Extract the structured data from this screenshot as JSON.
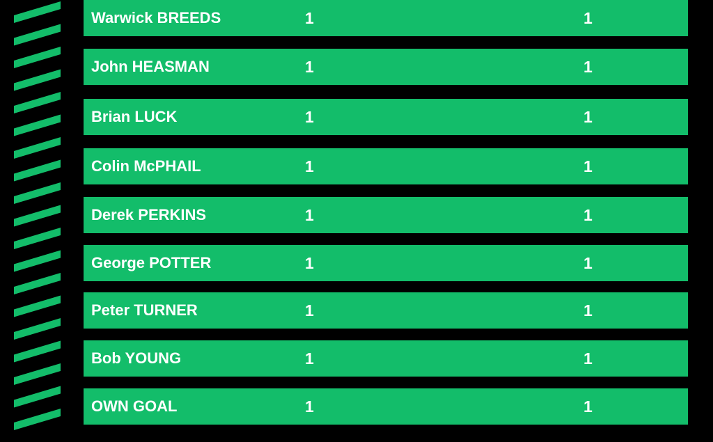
{
  "colors": {
    "accent": "#13bd6a",
    "background": "#000000",
    "text": "#ffffff"
  },
  "rows": [
    {
      "name": "Warwick BREEDS",
      "col1": "1",
      "col2": "1"
    },
    {
      "name": "John HEASMAN",
      "col1": "1",
      "col2": "1"
    },
    {
      "name": "Brian LUCK",
      "col1": "1",
      "col2": "1"
    },
    {
      "name": "Colin McPHAIL",
      "col1": "1",
      "col2": "1"
    },
    {
      "name": "Derek PERKINS",
      "col1": "1",
      "col2": "1"
    },
    {
      "name": "George POTTER",
      "col1": "1",
      "col2": "1"
    },
    {
      "name": "Peter TURNER",
      "col1": "1",
      "col2": "1"
    },
    {
      "name": "Bob YOUNG",
      "col1": "1",
      "col2": "1"
    },
    {
      "name": "OWN GOAL",
      "col1": "1",
      "col2": "1"
    }
  ]
}
